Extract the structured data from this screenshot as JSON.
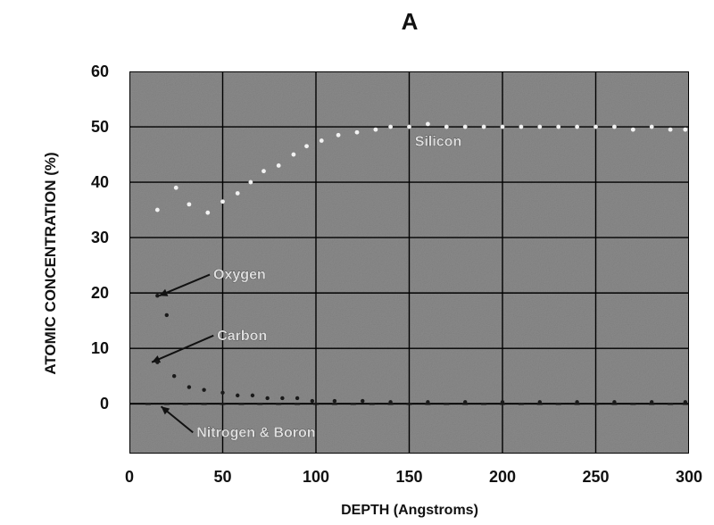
{
  "chart_data": {
    "type": "scatter",
    "title": "A",
    "xlabel": "DEPTH (Angstroms)",
    "ylabel": "ATOMIC CONCENTRATION (%)",
    "xlim": [
      0,
      300
    ],
    "ylim": [
      -9,
      60
    ],
    "x_ticks": [
      0,
      50,
      100,
      150,
      200,
      250,
      300
    ],
    "y_ticks": [
      0,
      10,
      20,
      30,
      40,
      50,
      60
    ],
    "grid": true,
    "plot_background": "#8a8a8a",
    "series": [
      {
        "name": "Silicon",
        "color": "#f2f2f2",
        "x": [
          15,
          25,
          32,
          42,
          50,
          58,
          65,
          72,
          80,
          88,
          95,
          103,
          112,
          122,
          132,
          140,
          150,
          160,
          170,
          180,
          190,
          200,
          210,
          220,
          230,
          240,
          250,
          260,
          270,
          280,
          290,
          298
        ],
        "values": [
          35,
          39,
          36,
          34.5,
          36.5,
          38,
          40,
          42,
          43,
          45,
          46.5,
          47.5,
          48.5,
          49,
          49.5,
          50,
          50,
          50.5,
          50,
          50,
          50,
          50,
          50,
          50,
          50,
          50,
          50,
          50,
          49.5,
          50,
          49.5,
          49.5
        ]
      },
      {
        "name": "Oxygen",
        "color": "#1a1a1a",
        "x": [
          15,
          20
        ],
        "values": [
          19.5,
          16
        ]
      },
      {
        "name": "Carbon",
        "color": "#1a1a1a",
        "x": [
          15,
          24,
          32,
          40,
          50,
          58,
          66,
          74,
          82,
          90,
          98,
          110,
          125,
          140,
          160,
          180,
          200,
          220,
          240,
          260,
          280,
          298
        ],
        "values": [
          7.5,
          5,
          3,
          2.5,
          2,
          1.5,
          1.5,
          1,
          1,
          1,
          0.5,
          0.5,
          0.5,
          0.3,
          0.3,
          0.3,
          0.3,
          0.3,
          0.3,
          0.3,
          0.3,
          0.3
        ]
      },
      {
        "name": "Nitrogen & Boron",
        "color": "#1a1a1a",
        "x": [
          10,
          20,
          30,
          40,
          50,
          60,
          70,
          80,
          90,
          100,
          110,
          120,
          130,
          140,
          150,
          160,
          170,
          180,
          190,
          200,
          210,
          220,
          230,
          240,
          250,
          260,
          270,
          280,
          290,
          298
        ],
        "values": [
          0,
          0,
          0,
          0,
          0,
          0,
          0,
          0,
          0,
          0,
          0,
          0,
          0,
          0,
          0,
          0,
          0,
          0,
          0,
          0,
          0,
          0,
          0,
          0,
          0,
          0,
          0,
          0,
          0,
          0
        ]
      }
    ],
    "annotations": [
      {
        "text": "Silicon",
        "x": 153,
        "y": 46.5
      },
      {
        "text": "Oxygen",
        "x": 45,
        "y": 22.5,
        "arrow_to": [
          16,
          19.5
        ]
      },
      {
        "text": "Carbon",
        "x": 47,
        "y": 11.5,
        "arrow_to": [
          12,
          7.5
        ]
      },
      {
        "text": "Nitrogen & Boron",
        "x": 36,
        "y": -6,
        "arrow_to": [
          17,
          -0.5
        ]
      }
    ]
  }
}
